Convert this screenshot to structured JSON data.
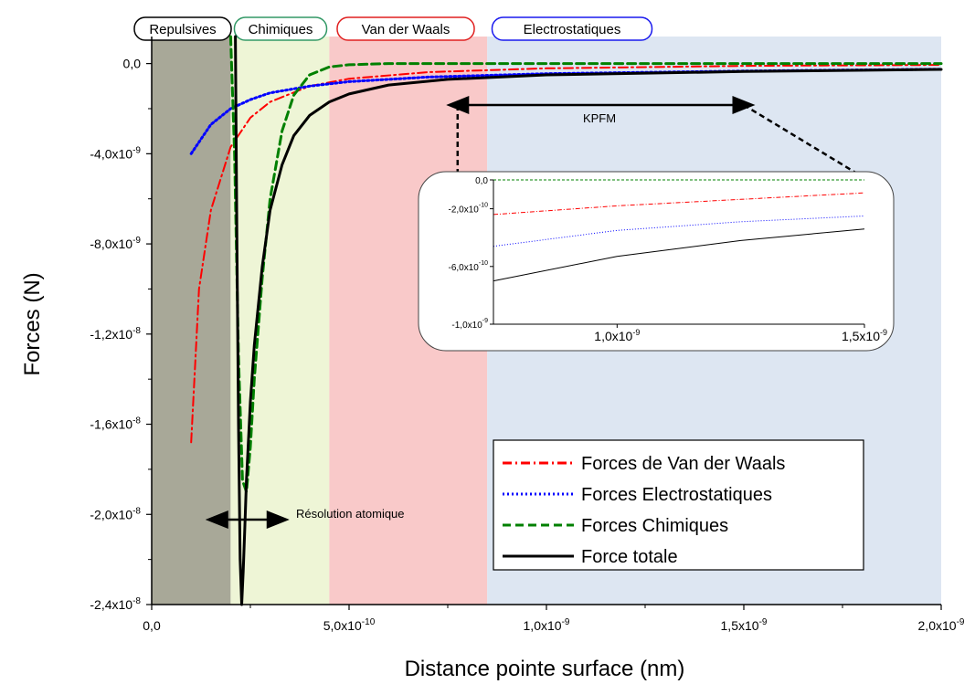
{
  "chart_data": {
    "type": "line",
    "xlabel": "Distance pointe surface (nm)",
    "ylabel": "Forces (N)",
    "xlim": [
      0,
      2e-09
    ],
    "ylim": [
      -2.4e-08,
      1.2e-09
    ],
    "x_tick_labels": [
      {
        "value": 0,
        "mant": "0,0",
        "exp": ""
      },
      {
        "value": 5e-10,
        "mant": "5,0x10",
        "exp": "-10"
      },
      {
        "value": 1e-09,
        "mant": "1,0x10",
        "exp": "-9"
      },
      {
        "value": 1.5e-09,
        "mant": "1,5x10",
        "exp": "-9"
      },
      {
        "value": 2e-09,
        "mant": "2,0x10",
        "exp": "-9"
      }
    ],
    "y_tick_labels": [
      {
        "value": 0,
        "mant": "0,0",
        "exp": ""
      },
      {
        "value": -4e-09,
        "mant": "-4,0x10",
        "exp": "-9"
      },
      {
        "value": -8e-09,
        "mant": "-8,0x10",
        "exp": "-9"
      },
      {
        "value": -1.2e-08,
        "mant": "-1,2x10",
        "exp": "-8"
      },
      {
        "value": -1.6e-08,
        "mant": "-1,6x10",
        "exp": "-8"
      },
      {
        "value": -2e-08,
        "mant": "-2,0x10",
        "exp": "-8"
      },
      {
        "value": -2.4e-08,
        "mant": "-2,4x10",
        "exp": "-8"
      }
    ],
    "regions": [
      {
        "label": "Repulsives",
        "x_start": 0,
        "x_end": 2e-10,
        "color": "#a8a898",
        "border": "#000000"
      },
      {
        "label": "Chimiques",
        "x_start": 2e-10,
        "x_end": 4.5e-10,
        "color": "#eef5d6",
        "border": "#339966"
      },
      {
        "label": "Van der Waals",
        "x_start": 4.5e-10,
        "x_end": 8.5e-10,
        "color": "#f9c9c9",
        "border": "#e02020"
      },
      {
        "label": "Electrostatiques",
        "x_start": 8.5e-10,
        "x_end": 2e-09,
        "color": "#dde6f2",
        "border": "#1a1aee"
      }
    ],
    "series": [
      {
        "name": "Forces de Van der Waals",
        "color": "#ff0000",
        "style": "dashdot",
        "x": [
          1e-10,
          1.2e-10,
          1.5e-10,
          2e-10,
          2.5e-10,
          3e-10,
          4e-10,
          5e-10,
          7e-10,
          1e-09,
          1.5e-09,
          2e-09
        ],
        "y": [
          -1.68e-08,
          -1e-08,
          -6.5e-09,
          -3.7e-09,
          -2.4e-09,
          -1.7e-09,
          -1e-09,
          -6.7e-10,
          -3.8e-10,
          -2.1e-10,
          -1e-10,
          -6e-11
        ]
      },
      {
        "name": "Forces Electrostatiques",
        "color": "#0000ff",
        "style": "dotted",
        "x": [
          1e-10,
          1.5e-10,
          2e-10,
          2.5e-10,
          3e-10,
          4e-10,
          5e-10,
          7e-10,
          1e-09,
          1.5e-09,
          2e-09
        ],
        "y": [
          -4e-09,
          -2.7e-09,
          -2e-09,
          -1.6e-09,
          -1.3e-09,
          -1e-09,
          -8e-10,
          -6e-10,
          -4.5e-10,
          -3.3e-10,
          -2.5e-10
        ]
      },
      {
        "name": "Forces Chimiques",
        "color": "#008000",
        "style": "dashed",
        "x": [
          2e-10,
          2.1e-10,
          2.2e-10,
          2.3e-10,
          2.4e-10,
          2.5e-10,
          2.6e-10,
          2.8e-10,
          3e-10,
          3.3e-10,
          3.6e-10,
          4e-10,
          4.5e-10,
          5e-10,
          6e-10,
          1e-09,
          2e-09
        ],
        "y": [
          1.2e-09,
          -4e-09,
          -1.3e-08,
          -1.85e-08,
          -1.9e-08,
          -1.7e-08,
          -1.4e-08,
          -9.5e-09,
          -6e-09,
          -3e-09,
          -1.4e-09,
          -5e-10,
          -1.5e-10,
          -5e-11,
          0,
          0,
          0
        ]
      },
      {
        "name": "Force totale",
        "color": "#000000",
        "style": "solid",
        "x": [
          2.12e-10,
          2.16e-10,
          2.2e-10,
          2.24e-10,
          2.28e-10,
          2.32e-10,
          2.36e-10,
          2.4e-10,
          2.5e-10,
          2.6e-10,
          2.8e-10,
          3e-10,
          3.3e-10,
          3.6e-10,
          4e-10,
          4.5e-10,
          5e-10,
          6e-10,
          7.5e-10,
          1e-09,
          1.5e-09,
          2e-09
        ],
        "y": [
          1.2e-09,
          -8e-09,
          -1.6e-08,
          -2.2e-08,
          -2.4e-08,
          -2.25e-08,
          -2.05e-08,
          -1.85e-08,
          -1.5e-08,
          -1.25e-08,
          -9e-09,
          -6.5e-09,
          -4.5e-09,
          -3.2e-09,
          -2.3e-09,
          -1.7e-09,
          -1.35e-09,
          -9.5e-10,
          -7e-10,
          -5e-10,
          -3.5e-10,
          -2.6e-10
        ]
      }
    ],
    "legend": {
      "position": "bottom-right",
      "frame": true
    },
    "annotations": [
      {
        "text": "KPFM",
        "arrow": "double",
        "x_start": 7.75e-10,
        "x_end": 1.5e-09
      },
      {
        "text": "Résolution atomique",
        "arrow": "double",
        "x_start": 1.65e-10,
        "x_end": 3.2e-10
      }
    ],
    "inset": {
      "xlim": [
        7.5e-10,
        1.5e-09
      ],
      "ylim": [
        -1e-09,
        0
      ],
      "x_tick_labels": [
        {
          "value": 1e-09,
          "mant": "1,0x10",
          "exp": "-9"
        },
        {
          "value": 1.5e-09,
          "mant": "1,5x10",
          "exp": "-9"
        }
      ],
      "y_tick_labels": [
        {
          "value": 0,
          "mant": "0,0",
          "exp": ""
        },
        {
          "value": -2e-10,
          "mant": "-2,0x10",
          "exp": "-10"
        },
        {
          "value": -6e-10,
          "mant": "-6,0x10",
          "exp": "-10"
        },
        {
          "value": -1e-09,
          "mant": "-1,0x10",
          "exp": "-9"
        }
      ],
      "series": [
        {
          "name": "Forces Chimiques",
          "color": "#008000",
          "style": "dashed",
          "x": [
            7.5e-10,
            1.5e-09
          ],
          "y": [
            0,
            0
          ]
        },
        {
          "name": "Forces de Van der Waals",
          "color": "#ff0000",
          "style": "dashdot",
          "x": [
            7.5e-10,
            1e-09,
            1.25e-09,
            1.5e-09
          ],
          "y": [
            -2.4e-10,
            -1.8e-10,
            -1.35e-10,
            -9e-11
          ]
        },
        {
          "name": "Forces Electrostatiques",
          "color": "#0000ff",
          "style": "dotted",
          "x": [
            7.5e-10,
            1e-09,
            1.25e-09,
            1.5e-09
          ],
          "y": [
            -4.6e-10,
            -3.5e-10,
            -2.9e-10,
            -2.5e-10
          ]
        },
        {
          "name": "Force totale",
          "color": "#000000",
          "style": "solid",
          "x": [
            7.5e-10,
            1e-09,
            1.25e-09,
            1.5e-09
          ],
          "y": [
            -7e-10,
            -5.3e-10,
            -4.2e-10,
            -3.4e-10
          ]
        }
      ]
    }
  }
}
